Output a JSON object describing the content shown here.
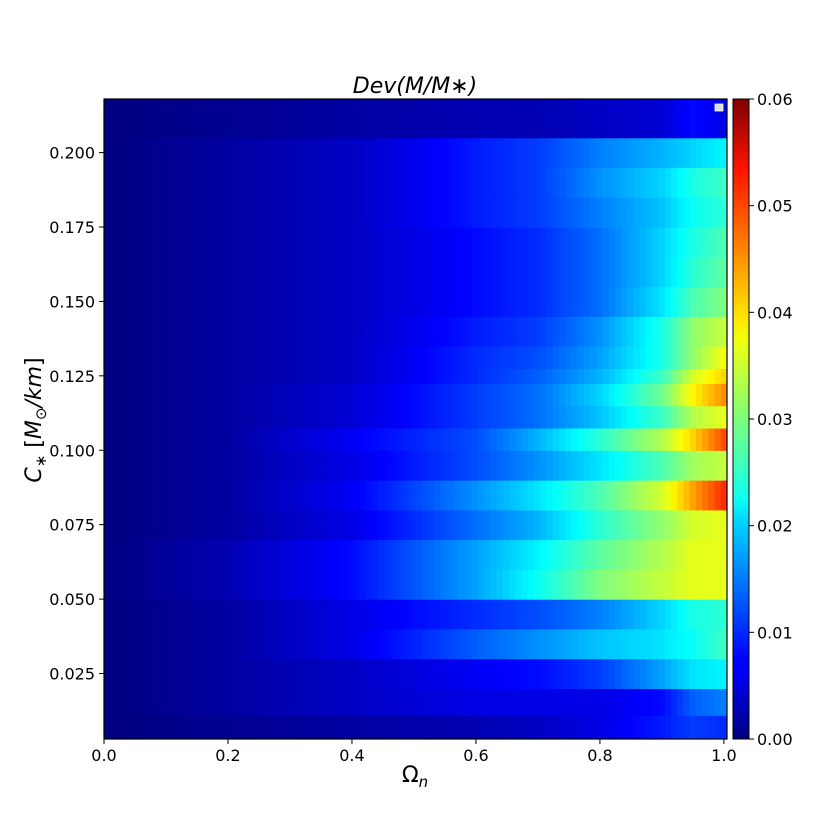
{
  "chart_data": {
    "type": "heatmap",
    "title": "Dev(M/M∗)",
    "xlabel": "Ωn",
    "ylabel": "C∗ [M⊙/km]",
    "xlim": [
      0.0,
      1.005
    ],
    "ylim": [
      0.003,
      0.218
    ],
    "x_ticks": [
      "0.0",
      "0.2",
      "0.4",
      "0.6",
      "0.8",
      "1.0"
    ],
    "x_tick_values": [
      0.0,
      0.2,
      0.4,
      0.6,
      0.8,
      1.0
    ],
    "y_ticks": [
      "0.025",
      "0.050",
      "0.075",
      "0.100",
      "0.125",
      "0.150",
      "0.175",
      "0.200"
    ],
    "y_tick_values": [
      0.025,
      0.05,
      0.075,
      0.1,
      0.125,
      0.15,
      0.175,
      0.2
    ],
    "colorbar": {
      "colormap": "jet",
      "range": [
        0.0,
        0.06
      ],
      "ticks": [
        "0.00",
        "0.01",
        "0.02",
        "0.03",
        "0.04",
        "0.05",
        "0.06"
      ],
      "tick_values": [
        0.0,
        0.01,
        0.02,
        0.03,
        0.04,
        0.05,
        0.06
      ]
    },
    "omega_n": [
      0.0,
      0.2,
      0.4,
      0.6,
      0.7,
      0.8,
      0.9,
      0.95,
      1.0
    ],
    "rows": [
      {
        "c": 0.21,
        "values": [
          0.0,
          0.001,
          0.002,
          0.003,
          0.003,
          0.004,
          0.005,
          0.008,
          0.006
        ]
      },
      {
        "c": 0.2,
        "values": [
          0.0,
          0.002,
          0.004,
          0.009,
          0.011,
          0.015,
          0.018,
          0.02,
          0.022
        ]
      },
      {
        "c": 0.19,
        "values": [
          0.0,
          0.002,
          0.004,
          0.009,
          0.011,
          0.016,
          0.02,
          0.024,
          0.026
        ]
      },
      {
        "c": 0.18,
        "values": [
          0.0,
          0.002,
          0.004,
          0.009,
          0.011,
          0.015,
          0.019,
          0.023,
          0.025
        ]
      },
      {
        "c": 0.17,
        "values": [
          0.0,
          0.002,
          0.004,
          0.008,
          0.01,
          0.014,
          0.02,
          0.024,
          0.027
        ]
      },
      {
        "c": 0.16,
        "values": [
          0.0,
          0.002,
          0.004,
          0.008,
          0.01,
          0.014,
          0.02,
          0.025,
          0.028
        ]
      },
      {
        "c": 0.15,
        "values": [
          0.0,
          0.002,
          0.004,
          0.008,
          0.01,
          0.014,
          0.021,
          0.027,
          0.03
        ]
      },
      {
        "c": 0.14,
        "values": [
          0.0,
          0.002,
          0.004,
          0.009,
          0.011,
          0.016,
          0.024,
          0.031,
          0.034
        ]
      },
      {
        "c": 0.13,
        "values": [
          0.0,
          0.002,
          0.004,
          0.01,
          0.012,
          0.017,
          0.024,
          0.031,
          0.037
        ]
      },
      {
        "c": 0.125,
        "values": [
          0.0,
          0.002,
          0.004,
          0.01,
          0.013,
          0.018,
          0.026,
          0.035,
          0.04
        ]
      },
      {
        "c": 0.12,
        "values": [
          0.0,
          0.002,
          0.005,
          0.011,
          0.014,
          0.02,
          0.029,
          0.038,
          0.044
        ]
      },
      {
        "c": 0.11,
        "values": [
          0.0,
          0.002,
          0.005,
          0.011,
          0.014,
          0.019,
          0.026,
          0.033,
          0.036
        ]
      },
      {
        "c": 0.105,
        "values": [
          0.0,
          0.002,
          0.007,
          0.012,
          0.018,
          0.025,
          0.033,
          0.04,
          0.048
        ]
      },
      {
        "c": 0.095,
        "values": [
          0.0,
          0.002,
          0.006,
          0.012,
          0.016,
          0.021,
          0.027,
          0.032,
          0.034
        ]
      },
      {
        "c": 0.085,
        "values": [
          0.0,
          0.002,
          0.007,
          0.016,
          0.021,
          0.027,
          0.035,
          0.043,
          0.05
        ]
      },
      {
        "c": 0.075,
        "values": [
          0.0,
          0.002,
          0.006,
          0.014,
          0.018,
          0.025,
          0.031,
          0.035,
          0.036
        ]
      },
      {
        "c": 0.065,
        "values": [
          0.0,
          0.003,
          0.008,
          0.017,
          0.022,
          0.028,
          0.033,
          0.036,
          0.036
        ]
      },
      {
        "c": 0.055,
        "values": [
          0.0,
          0.003,
          0.008,
          0.017,
          0.023,
          0.03,
          0.034,
          0.036,
          0.036
        ]
      },
      {
        "c": 0.045,
        "values": [
          0.0,
          0.002,
          0.006,
          0.01,
          0.012,
          0.015,
          0.02,
          0.024,
          0.025
        ]
      },
      {
        "c": 0.035,
        "values": [
          0.0,
          0.002,
          0.006,
          0.013,
          0.016,
          0.019,
          0.021,
          0.023,
          0.026
        ]
      },
      {
        "c": 0.025,
        "values": [
          0.0,
          0.002,
          0.004,
          0.007,
          0.008,
          0.011,
          0.017,
          0.021,
          0.022
        ]
      },
      {
        "c": 0.015,
        "values": [
          0.0,
          0.002,
          0.004,
          0.006,
          0.006,
          0.006,
          0.008,
          0.013,
          0.015
        ]
      },
      {
        "c": 0.007,
        "values": [
          0.0,
          0.001,
          0.002,
          0.003,
          0.004,
          0.006,
          0.009,
          0.011,
          0.01
        ]
      }
    ]
  }
}
